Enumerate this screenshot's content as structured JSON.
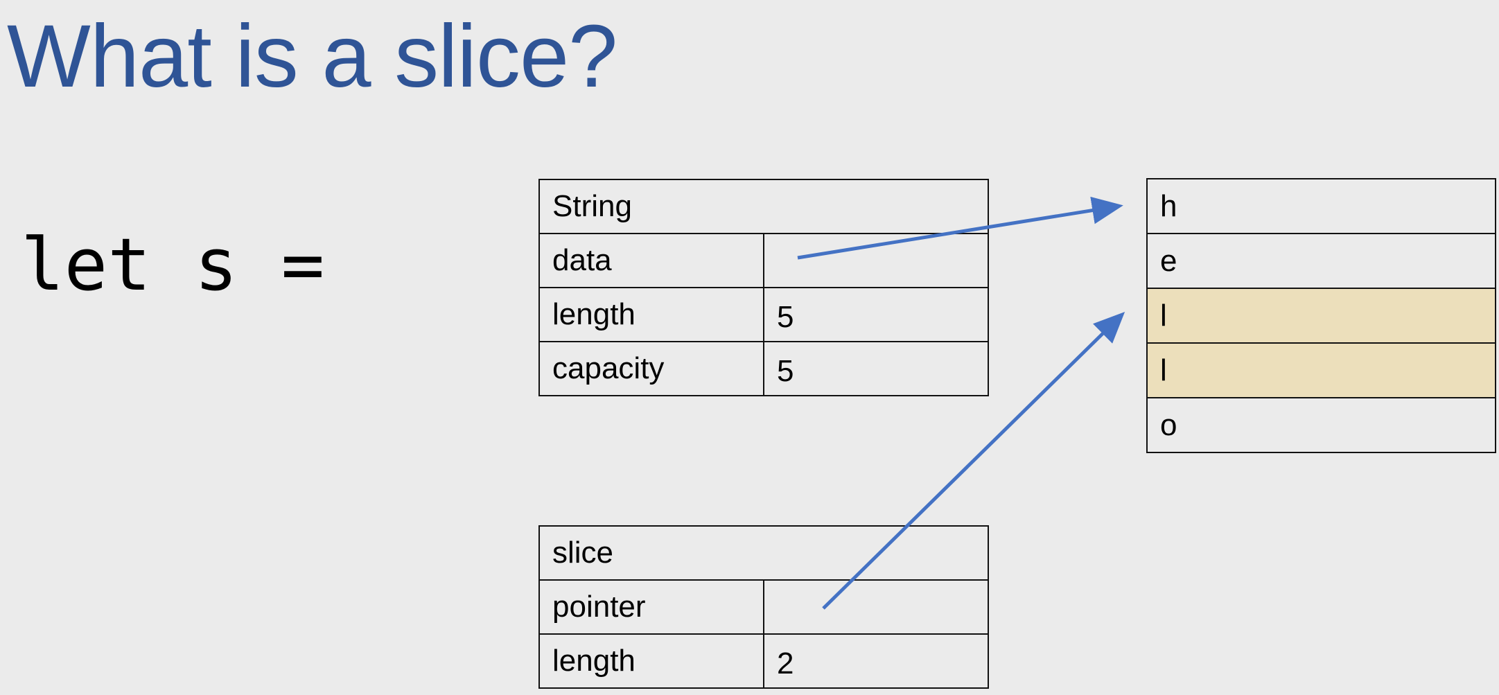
{
  "slide": {
    "title": "What is a slice?",
    "code": "let s ="
  },
  "string_box": {
    "header": "String",
    "rows": [
      {
        "label": "data",
        "value": ""
      },
      {
        "label": "length",
        "value": "5"
      },
      {
        "label": "capacity",
        "value": "5"
      }
    ]
  },
  "slice_box": {
    "header": "slice",
    "rows": [
      {
        "label": "pointer",
        "value": ""
      },
      {
        "label": "length",
        "value": "2"
      }
    ]
  },
  "heap": {
    "cells": [
      "h",
      "e",
      "l",
      "l",
      "o"
    ],
    "highlighted": [
      2,
      3
    ],
    "highlight_color": "#ecdfbb"
  },
  "arrow_color": "#4472c4"
}
